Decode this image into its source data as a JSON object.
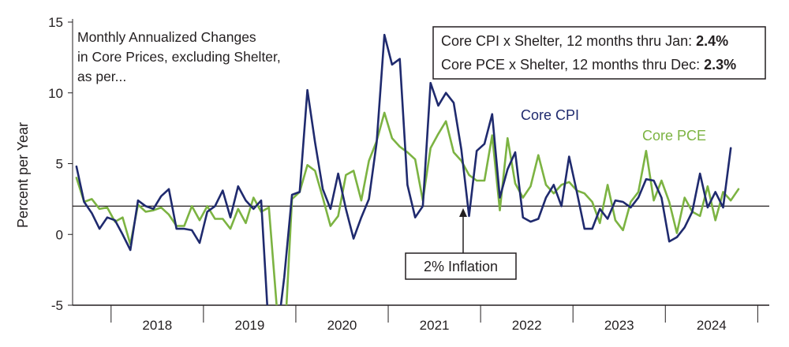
{
  "chart_data": {
    "type": "line",
    "title_lines": [
      "Monthly Annualized Changes",
      "in Core Prices, excluding Shelter,",
      "as per..."
    ],
    "ylabel": "Percent per Year",
    "xlabel": "",
    "ylim": [
      -5,
      15
    ],
    "yticks": [
      -5,
      0,
      5,
      10,
      15
    ],
    "x_start": "2017-08",
    "x_end": "2025-01",
    "years": [
      "2018",
      "2019",
      "2020",
      "2021",
      "2022",
      "2023",
      "2024"
    ],
    "reference_line": {
      "value": 2,
      "label": "2% Inflation"
    },
    "summary_box": {
      "line1_prefix": "Core CPI x Shelter, 12 months thru Jan: ",
      "line1_value": "2.4%",
      "line2_prefix": "Core PCE x Shelter, 12 months thru Dec: ",
      "line2_value": "2.3%"
    },
    "series": [
      {
        "name": "Core CPI",
        "color": "#1f2a6e",
        "values": [
          4.8,
          2.3,
          1.5,
          0.4,
          1.2,
          1.0,
          0.0,
          -1.1,
          2.4,
          2.0,
          1.8,
          2.7,
          3.2,
          0.4,
          0.4,
          0.3,
          -0.6,
          1.6,
          2.0,
          3.1,
          1.2,
          3.4,
          2.4,
          1.8,
          2.4,
          -7.0,
          -7.5,
          -3.0,
          2.8,
          3.0,
          10.2,
          6.5,
          3.2,
          1.8,
          4.3,
          1.8,
          -0.3,
          1.2,
          2.5,
          6.5,
          14.1,
          12.0,
          12.4,
          3.5,
          1.2,
          2.0,
          10.7,
          9.1,
          10.0,
          9.3,
          6.0,
          1.3,
          5.9,
          6.4,
          8.5,
          2.6,
          4.6,
          5.8,
          1.2,
          0.9,
          1.1,
          2.6,
          3.5,
          2.0,
          5.5,
          3.0,
          0.4,
          0.4,
          1.8,
          1.1,
          2.4,
          2.3,
          1.9,
          2.6,
          3.9,
          3.8,
          2.6,
          -0.5,
          -0.2,
          0.5,
          1.6,
          4.3,
          1.9,
          3.0,
          1.9,
          6.1
        ]
      },
      {
        "name": "Core PCE",
        "color": "#7cb342",
        "values": [
          4.0,
          2.3,
          2.5,
          1.8,
          1.9,
          0.9,
          1.2,
          -0.7,
          2.1,
          1.6,
          1.7,
          1.9,
          1.4,
          0.6,
          0.6,
          2.0,
          1.0,
          2.0,
          1.1,
          1.1,
          0.4,
          1.8,
          0.8,
          2.6,
          1.6,
          1.9,
          -5.0,
          -8.0,
          2.5,
          3.0,
          4.9,
          4.5,
          2.6,
          0.6,
          1.3,
          4.2,
          4.5,
          2.4,
          5.2,
          6.6,
          8.6,
          6.8,
          6.2,
          5.8,
          5.3,
          2.4,
          6.1,
          7.1,
          8.0,
          5.8,
          5.2,
          4.2,
          3.8,
          3.8,
          7.0,
          1.7,
          6.8,
          3.6,
          2.6,
          3.4,
          5.6,
          3.5,
          2.9,
          3.5,
          3.7,
          3.1,
          2.9,
          2.3,
          0.8,
          3.5,
          1.0,
          0.3,
          2.3,
          3.0,
          5.9,
          2.4,
          3.8,
          2.3,
          0.1,
          2.6,
          1.6,
          1.3,
          3.4,
          1.0,
          3.0,
          2.4,
          3.2
        ]
      }
    ]
  }
}
